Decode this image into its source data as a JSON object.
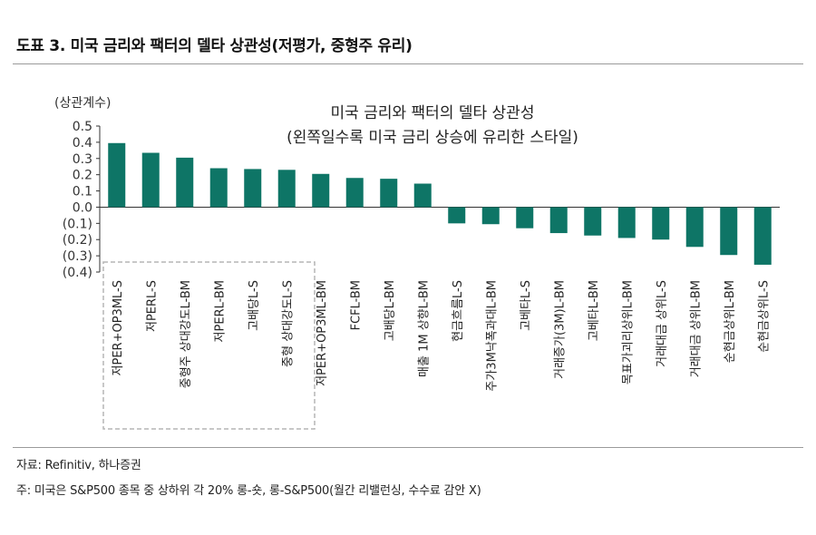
{
  "figure_title": "도표 3. 미국 금리와 팩터의 델타 상관성(저평가, 중형주 유리)",
  "footnotes": {
    "source": "자료: Refinitiv, 하나증권",
    "note": "주: 미국은 S&P500 종목 중 상하위 각 20% 롱-숏, 롱-S&P500(월간 리밸런싱, 수수료 감안 X)"
  },
  "colors": {
    "bar": "#0e7566",
    "axis": "#333333",
    "dashed_box": "#b5b5b5"
  },
  "chart_data": {
    "type": "bar",
    "title": "미국 금리와 팩터의 델타 상관성",
    "subtitle": "(왼쪽일수록 미국 금리 상승에 유리한 스타일)",
    "ylabel": "(상관계수)",
    "ylim": [
      -0.4,
      0.5
    ],
    "yticks": [
      "(0.4)",
      "(0.3)",
      "(0.2)",
      "(0.1)",
      "0.0",
      "0.1",
      "0.2",
      "0.3",
      "0.4",
      "0.5"
    ],
    "ytick_values": [
      -0.4,
      -0.3,
      -0.2,
      -0.1,
      0.0,
      0.1,
      0.2,
      0.3,
      0.4,
      0.5
    ],
    "highlight_group": {
      "style": "dashed box",
      "categories_from": 0,
      "categories_to": 5
    },
    "categories": [
      "저PER+OP3ML-S",
      "저PERL-S",
      "중형주 상대강도L-BM",
      "저PERL-BM",
      "고배당L-S",
      "중형 상대강도L-S",
      "저PER+OP3ML-BM",
      "FCFL-BM",
      "고배당L-BM",
      "매출 1M 상향L-BM",
      "현금흐름L-S",
      "주가3M낙폭과대L-BM",
      "고베타L-S",
      "거래증가(3M)L-BM",
      "고베타L-BM",
      "목표가괴리상위L-BM",
      "거래대금 상위L-S",
      "거래대금 상위L-BM",
      "순현금상위L-BM",
      "순현금상위L-S"
    ],
    "values": [
      0.395,
      0.335,
      0.305,
      0.24,
      0.235,
      0.23,
      0.205,
      0.18,
      0.175,
      0.145,
      -0.1,
      -0.105,
      -0.13,
      -0.16,
      -0.175,
      -0.19,
      -0.2,
      -0.245,
      -0.295,
      -0.355
    ]
  }
}
